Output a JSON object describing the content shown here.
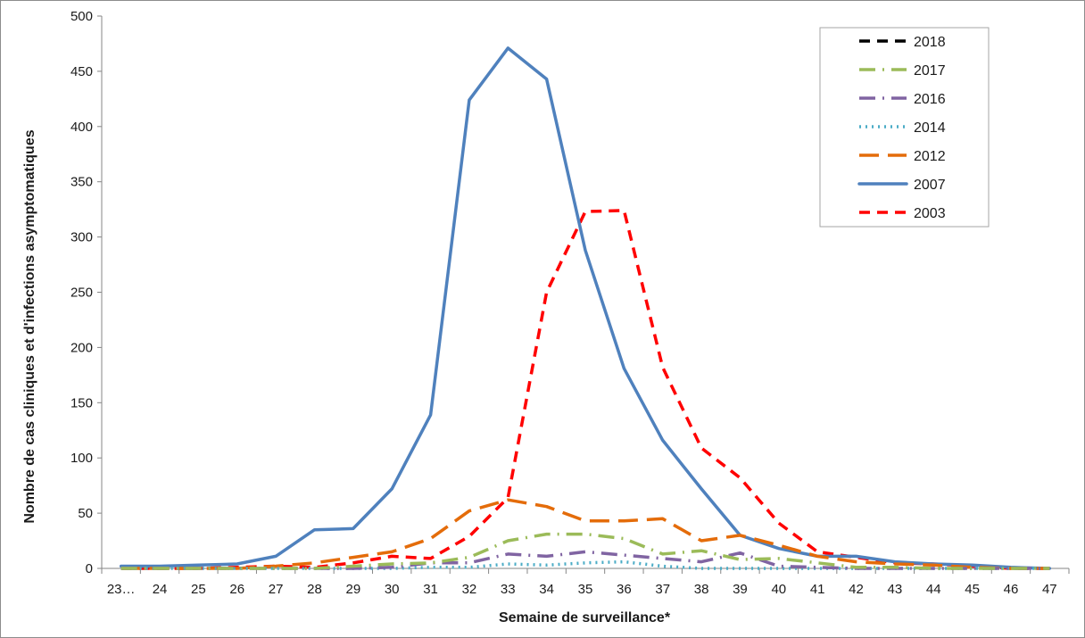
{
  "chart_data": {
    "type": "line",
    "title": "",
    "xlabel": "Semaine de surveillance*",
    "ylabel": "Nombre de cas cliniques et d'infections asymptomatiques",
    "ylim": [
      0,
      500
    ],
    "yticks": [
      "0",
      "50",
      "100",
      "150",
      "200",
      "250",
      "300",
      "350",
      "400",
      "450",
      "500"
    ],
    "categories": [
      "23…",
      "24",
      "25",
      "26",
      "27",
      "28",
      "29",
      "30",
      "31",
      "32",
      "33",
      "34",
      "35",
      "36",
      "37",
      "38",
      "39",
      "40",
      "41",
      "42",
      "43",
      "44",
      "45",
      "46",
      "47"
    ],
    "grid": false,
    "legend_position": "top-right",
    "series": [
      {
        "name": "2018",
        "color": "#000000",
        "dash": "dashed",
        "values": [
          null,
          null,
          null,
          null,
          null,
          null,
          null,
          null,
          null,
          null,
          null,
          null,
          null,
          null,
          null,
          null,
          null,
          null,
          null,
          null,
          null,
          null,
          null,
          null,
          null
        ]
      },
      {
        "name": "2017",
        "color": "#9bbb59",
        "dash": "dash-dot",
        "values": [
          0,
          0,
          0,
          0,
          0,
          0,
          2,
          4,
          5,
          10,
          25,
          31,
          31,
          27,
          13,
          16,
          8,
          9,
          5,
          1,
          1,
          0,
          0,
          0,
          0
        ]
      },
      {
        "name": "2016",
        "color": "#8064a2",
        "dash": "dash-dot",
        "values": [
          0,
          0,
          0,
          0,
          0,
          0,
          0,
          1,
          5,
          5,
          13,
          11,
          15,
          12,
          9,
          6,
          14,
          2,
          1,
          0,
          0,
          0,
          0,
          0,
          0
        ]
      },
      {
        "name": "2014",
        "color": "#4bacc6",
        "dash": "dotted",
        "values": [
          0,
          0,
          0,
          0,
          0,
          0,
          0,
          0,
          1,
          1,
          4,
          3,
          5,
          6,
          2,
          0,
          0,
          0,
          0,
          0,
          0,
          0,
          0,
          0,
          0
        ]
      },
      {
        "name": "2012",
        "color": "#e46c0a",
        "dash": "long-dash",
        "values": [
          0,
          0,
          0,
          0,
          2,
          5,
          10,
          15,
          27,
          52,
          62,
          56,
          43,
          43,
          45,
          25,
          30,
          21,
          11,
          6,
          4,
          3,
          1,
          0,
          0
        ]
      },
      {
        "name": "2007",
        "color": "#4f81bd",
        "dash": "solid",
        "values": [
          2,
          2,
          3,
          4,
          11,
          35,
          36,
          72,
          139,
          424,
          471,
          443,
          288,
          181,
          116,
          72,
          30,
          18,
          11,
          11,
          6,
          4,
          3,
          1,
          0
        ]
      },
      {
        "name": "2003",
        "color": "#ff0000",
        "dash": "dashed",
        "values": [
          0,
          0,
          0,
          1,
          2,
          1,
          5,
          11,
          9,
          29,
          64,
          250,
          323,
          324,
          182,
          109,
          82,
          41,
          15,
          10,
          5,
          4,
          2,
          0,
          0
        ]
      }
    ]
  }
}
